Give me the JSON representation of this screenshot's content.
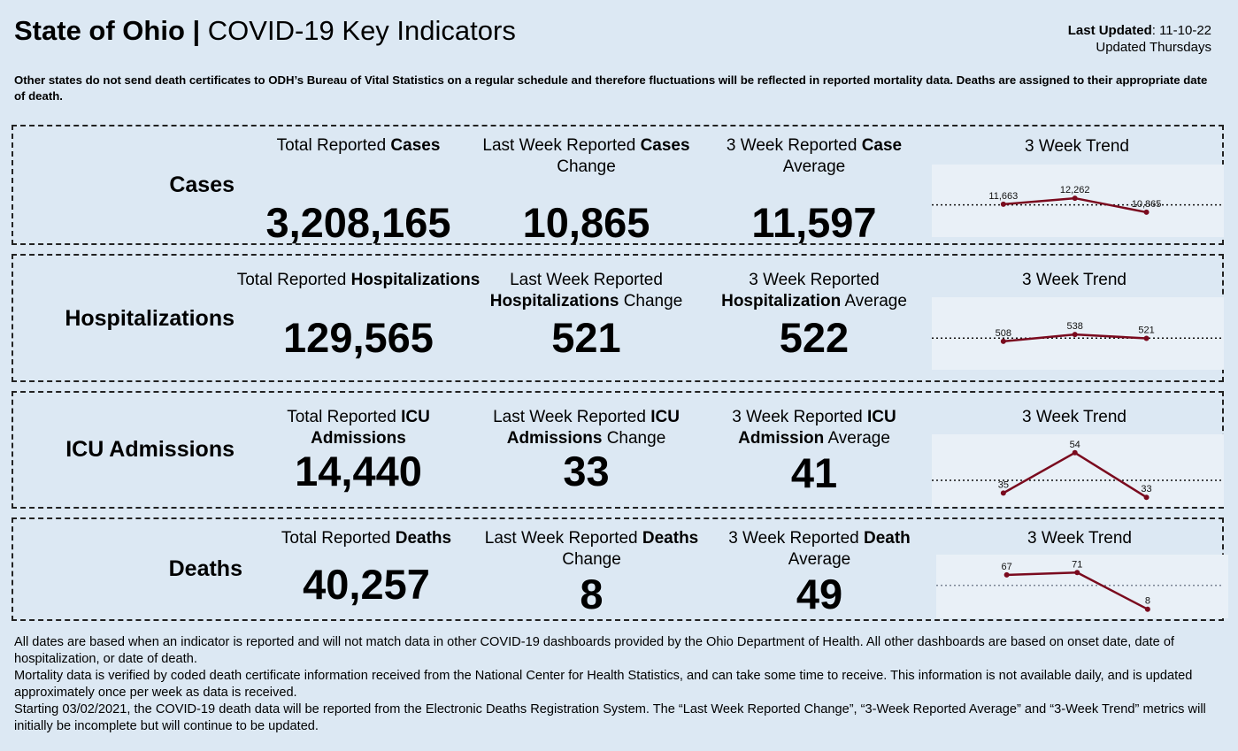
{
  "header": {
    "state": "State of Ohio",
    "separator": " | ",
    "title": "COVID-19 Key Indicators",
    "last_updated_label": "Last Updated",
    "last_updated_value": ": 11-10-22",
    "update_frequency": "Updated Thursdays"
  },
  "notice": "Other states do not send death certificates to ODH’s Bureau of Vital Statistics on a regular schedule and therefore fluctuations will be reflected in reported mortality data. Deaths are assigned to their appropriate date of death.",
  "trend_title": "3 Week Trend",
  "colors": {
    "background": "#dce8f3",
    "trend_line": "#7a0a1e",
    "trend_panel": "#e9f0f7"
  },
  "rows": [
    {
      "label": "Cases",
      "total": {
        "pre": "Total Reported ",
        "bold": "Cases",
        "post": "",
        "value": "3,208,165"
      },
      "change": {
        "pre": "Last Week Reported ",
        "bold": "Cases",
        "post": " Change",
        "value": "10,865"
      },
      "average": {
        "pre": "3 Week Reported ",
        "bold": "Case",
        "post": " Average",
        "value": "11,597"
      },
      "trend": {
        "values": [
          11663,
          12262,
          10865
        ],
        "labels": [
          "11,663",
          "12,262",
          "10,865"
        ],
        "average": 11597,
        "ylim": [
          0,
          12700
        ]
      }
    },
    {
      "label": "Hospitalizations",
      "total": {
        "pre": "Total Reported ",
        "bold": "Hospitalizations",
        "post": "",
        "value": "129,565"
      },
      "change": {
        "pre": "Last Week Reported ",
        "bold": "Hospitalizations",
        "post": " Change",
        "value": "521"
      },
      "average": {
        "pre": "3 Week Reported ",
        "bold": "Hospitalization",
        "post": " Average",
        "value": "522"
      },
      "trend": {
        "values": [
          508,
          538,
          521
        ],
        "labels": [
          "508",
          "538",
          "521"
        ],
        "average": 522,
        "ylim": [
          0,
          560
        ]
      }
    },
    {
      "label": "ICU Admissions",
      "total": {
        "pre": "Total Reported ",
        "bold": "ICU Admissions",
        "post": "",
        "value": "14,440"
      },
      "change": {
        "pre": "Last Week Reported ",
        "bold": "ICU Admissions",
        "post": " Change",
        "value": "33"
      },
      "average": {
        "pre": "3 Week Reported ",
        "bold": "ICU Admission",
        "post": " Average",
        "value": "41"
      },
      "trend": {
        "values": [
          35,
          54,
          33
        ],
        "labels": [
          "35",
          "54",
          "33"
        ],
        "average": 41,
        "ylim": [
          0,
          58
        ]
      }
    },
    {
      "label": "Deaths",
      "total": {
        "pre": "Total Reported ",
        "bold": "Deaths",
        "post": "",
        "value": "40,257"
      },
      "change": {
        "pre": "Last Week Reported ",
        "bold": "Deaths",
        "post": " Change",
        "value": "8"
      },
      "average": {
        "pre": "3 Week Reported ",
        "bold": "Death",
        "post": " Average",
        "value": "49"
      },
      "trend": {
        "values": [
          67,
          71,
          8
        ],
        "labels": [
          "67",
          "71",
          "8"
        ],
        "average": 49,
        "ylim": [
          0,
          80
        ]
      }
    }
  ],
  "footer": [
    "All dates are based when an indicator is reported and will not match data in other COVID-19 dashboards provided by the Ohio Department of Health. All other dashboards are based on onset date, date of hospitalization, or date of death.",
    "Mortality data is verified by coded death certificate information received from the National Center for Health Statistics, and can take some time to receive. This information is not available daily, and is updated approximately once per week as data is received.",
    "Starting 03/02/2021, the COVID-19 death data will be reported from the Electronic Deaths Registration System. The “Last Week Reported Change”, “3-Week Reported Average” and “3-Week Trend” metrics will initially be incomplete but will continue to be updated."
  ],
  "chart_data": [
    {
      "type": "line",
      "title": "3 Week Trend",
      "series": [
        {
          "name": "Cases",
          "values": [
            11663,
            12262,
            10865
          ]
        }
      ],
      "reference_line": 11597,
      "data_labels": [
        "11,663",
        "12,262",
        "10,865"
      ],
      "ylim": [
        0,
        12700
      ]
    },
    {
      "type": "line",
      "title": "3 Week Trend",
      "series": [
        {
          "name": "Hospitalizations",
          "values": [
            508,
            538,
            521
          ]
        }
      ],
      "reference_line": 522,
      "data_labels": [
        "508",
        "538",
        "521"
      ],
      "ylim": [
        0,
        560
      ]
    },
    {
      "type": "line",
      "title": "3 Week Trend",
      "series": [
        {
          "name": "ICU Admissions",
          "values": [
            35,
            54,
            33
          ]
        }
      ],
      "reference_line": 41,
      "data_labels": [
        "35",
        "54",
        "33"
      ],
      "ylim": [
        0,
        58
      ]
    },
    {
      "type": "line",
      "title": "3 Week Trend",
      "series": [
        {
          "name": "Deaths",
          "values": [
            67,
            71,
            8
          ]
        }
      ],
      "reference_line": 49,
      "data_labels": [
        "67",
        "71",
        "8"
      ],
      "ylim": [
        0,
        80
      ]
    }
  ]
}
